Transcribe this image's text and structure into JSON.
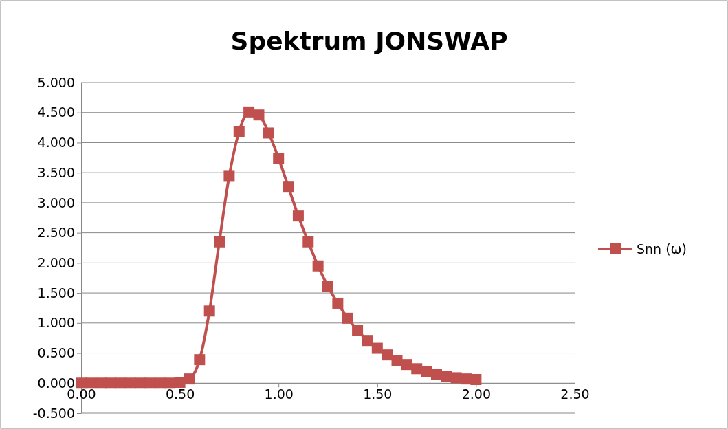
{
  "chart_data": {
    "type": "line",
    "title": "Spektrum JONSWAP",
    "x": [
      0,
      0.05,
      0.1,
      0.15,
      0.2,
      0.25,
      0.3,
      0.35,
      0.4,
      0.45,
      0.5,
      0.55,
      0.6,
      0.65,
      0.7,
      0.75,
      0.8,
      0.85,
      0.9,
      0.95,
      1,
      1.05,
      1.1,
      1.15,
      1.2,
      1.25,
      1.3,
      1.35,
      1.4,
      1.45,
      1.5,
      1.55,
      1.6,
      1.65,
      1.7,
      1.75,
      1.8,
      1.85,
      1.9,
      1.95,
      2
    ],
    "series": [
      {
        "name": "Snn (ω)",
        "color": "#c0504d",
        "values": [
          0,
          0,
          0,
          0,
          0,
          0,
          0,
          0,
          0,
          0,
          0.01,
          0.07,
          0.39,
          1.2,
          2.35,
          3.44,
          4.18,
          4.51,
          4.46,
          4.16,
          3.74,
          3.26,
          2.78,
          2.35,
          1.95,
          1.61,
          1.33,
          1.08,
          0.88,
          0.71,
          0.58,
          0.47,
          0.38,
          0.31,
          0.24,
          0.19,
          0.15,
          0.11,
          0.09,
          0.07,
          0.06
        ]
      }
    ],
    "xlim": [
      0,
      2.5
    ],
    "xticks": [
      {
        "value": 0,
        "label": "0.00"
      },
      {
        "value": 0.5,
        "label": "0.50"
      },
      {
        "value": 1,
        "label": "1.00"
      },
      {
        "value": 1.5,
        "label": "1.50"
      },
      {
        "value": 2,
        "label": "2.00"
      },
      {
        "value": 2.5,
        "label": "2.50"
      }
    ],
    "ylim": [
      -0.5,
      5
    ],
    "yticks": [
      {
        "value": -0.5,
        "label": "-0.500"
      },
      {
        "value": 0,
        "label": "0.000"
      },
      {
        "value": 0.5,
        "label": "0.500"
      },
      {
        "value": 1,
        "label": "1.000"
      },
      {
        "value": 1.5,
        "label": "1.500"
      },
      {
        "value": 2,
        "label": "2.000"
      },
      {
        "value": 2.5,
        "label": "2.500"
      },
      {
        "value": 3,
        "label": "3.000"
      },
      {
        "value": 3.5,
        "label": "3.500"
      },
      {
        "value": 4,
        "label": "4.000"
      },
      {
        "value": 4.5,
        "label": "4.500"
      },
      {
        "value": 5,
        "label": "5.000"
      }
    ],
    "grid": "y",
    "legend": "right",
    "marker": "square",
    "line_style": "solid"
  }
}
